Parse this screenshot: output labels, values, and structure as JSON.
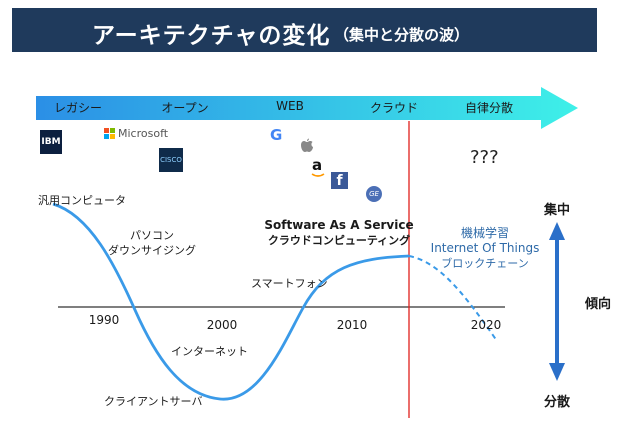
{
  "title": {
    "main": "アーキテクチャの変化",
    "sub": "（集中と分散の波）"
  },
  "eras": [
    "レガシー",
    "オープン",
    "WEB",
    "クラウド",
    "自律分散"
  ],
  "logos": {
    "ibm": "IBM",
    "microsoft": "Microsoft",
    "cisco": "CISCO",
    "google": "G",
    "amazon": "a",
    "facebook": "f",
    "ge": "GE"
  },
  "future_marker": "???",
  "annotations": {
    "mainframe": "汎用コンピュータ",
    "pc_line1": "パソコン",
    "pc_line2": "ダウンサイジング",
    "internet": "インターネット",
    "client_server": "クライアントサーバ",
    "smartphone": "スマートフォン",
    "saas_line1": "Software As A Service",
    "saas_line2": "クラウドコンピューティング",
    "ml": "機械学習",
    "iot": "Internet Of Things",
    "blockchain": "ブロックチェーン"
  },
  "years": [
    "1990",
    "2000",
    "2010",
    "2020"
  ],
  "trend": {
    "top": "集中",
    "middle": "傾向",
    "bottom": "分散"
  },
  "colors": {
    "title_bar": "#1f3a5c",
    "wave": "#3a9ae8",
    "divider": "#e0201c",
    "arrow_start": "#2b8fe6",
    "arrow_end": "#3ef0e8"
  }
}
